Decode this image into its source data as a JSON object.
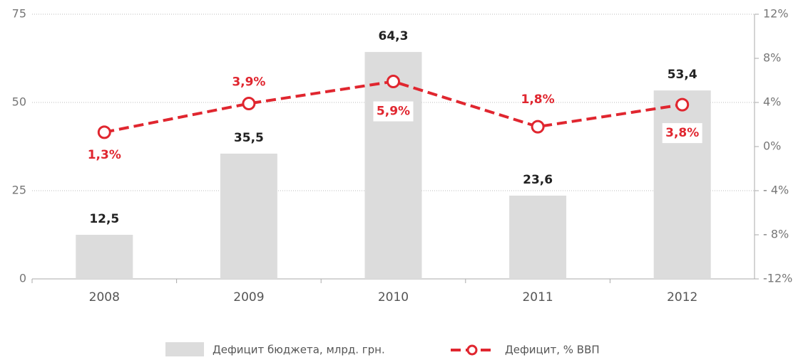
{
  "chart_data": {
    "type": "bar",
    "categories": [
      "2008",
      "2009",
      "2010",
      "2011",
      "2012"
    ],
    "series": [
      {
        "name": "Дефицит бюджета, млрд. грн.",
        "type": "bar",
        "color": "#dcdcdc",
        "values": [
          12.5,
          35.5,
          64.3,
          23.6,
          53.4
        ],
        "value_labels": [
          "12,5",
          "35,5",
          "64,3",
          "23,6",
          "53,4"
        ]
      },
      {
        "name": "Дефицит, % ВВП",
        "type": "line",
        "axis": "y2",
        "color": "#e0262f",
        "values": [
          1.3,
          3.9,
          5.9,
          1.8,
          3.8
        ],
        "value_labels": [
          "1,3%",
          "3,9%",
          "5,9%",
          "1,8%",
          "3,8%"
        ]
      }
    ],
    "ylim": [
      0,
      75
    ],
    "yticks": [
      0,
      25,
      50,
      75
    ],
    "y2lim": [
      -12,
      12
    ],
    "y2ticks": [
      {
        "value": -12,
        "label": "-12%"
      },
      {
        "value": -8,
        "label": "- 8%"
      },
      {
        "value": -4,
        "label": "- 4%"
      },
      {
        "value": 0,
        "label": "0%"
      },
      {
        "value": 4,
        "label": "4%"
      },
      {
        "value": 8,
        "label": "8%"
      },
      {
        "value": 12,
        "label": "12%"
      }
    ],
    "grid": true
  }
}
